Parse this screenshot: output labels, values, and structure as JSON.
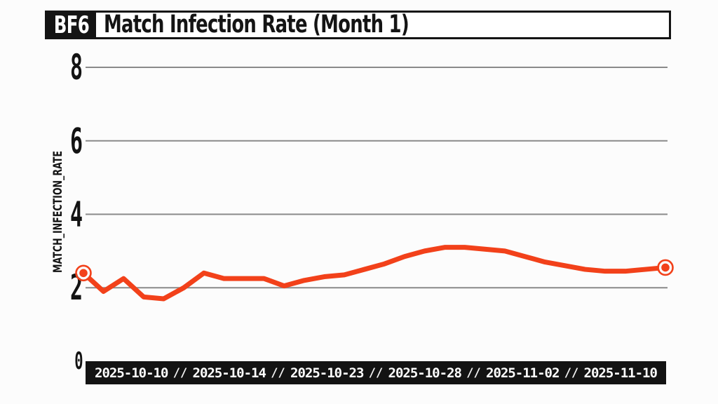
{
  "header": {
    "badge": "BF6",
    "title": "Match Infection Rate (Month 1)"
  },
  "colors": {
    "background": "#fcfcfc",
    "ink": "#141414",
    "grid": "#8a8a8a",
    "line": "#f2411a",
    "bar_background": "#131313",
    "bar_text": "#ffffff"
  },
  "chart_data": {
    "type": "line",
    "title": "Match Infection Rate (Month 1)",
    "xlabel": "",
    "ylabel": "MATCH_INFECTION_RATE",
    "ylim": [
      0,
      8
    ],
    "yticks": [
      0,
      2,
      4,
      6,
      8
    ],
    "gridlines": [
      2,
      4,
      6,
      8
    ],
    "grid": true,
    "legend": false,
    "marker_style": "endpoints-only-ring-dot",
    "x_tick_labels": [
      "2025-10-10",
      "2025-10-14",
      "2025-10-23",
      "2025-10-28",
      "2025-11-02",
      "2025-11-10"
    ],
    "x_tick_separator": "//",
    "series": [
      {
        "name": "MATCH_INFECTION_RATE",
        "color": "#f2411a",
        "values": [
          2.4,
          1.9,
          2.25,
          1.75,
          1.7,
          2.0,
          2.4,
          2.25,
          2.25,
          2.25,
          2.05,
          2.2,
          2.3,
          2.35,
          2.5,
          2.65,
          2.85,
          3.0,
          3.1,
          3.1,
          3.05,
          3.0,
          2.85,
          2.7,
          2.6,
          2.5,
          2.45,
          2.45,
          2.5,
          2.55
        ]
      }
    ]
  }
}
